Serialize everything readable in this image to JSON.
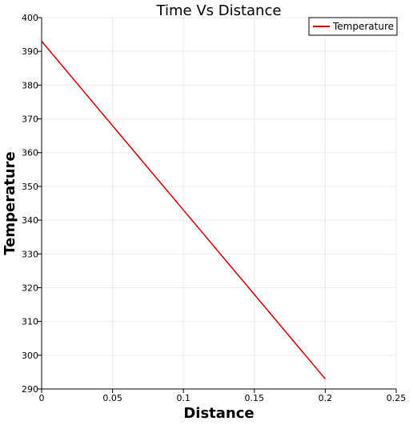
{
  "chart_data": {
    "type": "line",
    "title": "Time Vs Distance",
    "xlabel": "Distance",
    "ylabel": "Temperature",
    "xlim": [
      0,
      0.25
    ],
    "ylim": [
      290,
      400
    ],
    "xticks": [
      0,
      0.05,
      0.1,
      0.15,
      0.2,
      0.25
    ],
    "xtick_labels": [
      "0",
      "0.05",
      "0.1",
      "0.15",
      "0.2",
      "0.25"
    ],
    "yticks": [
      290,
      300,
      310,
      320,
      330,
      340,
      350,
      360,
      370,
      380,
      390,
      400
    ],
    "ytick_labels": [
      "290",
      "300",
      "310",
      "320",
      "330",
      "340",
      "350",
      "360",
      "370",
      "380",
      "390",
      "400"
    ],
    "grid": true,
    "legend": {
      "placement": "top-right"
    },
    "series": [
      {
        "name": "Temperature",
        "color": "#cc0000",
        "x": [
          0,
          0.2
        ],
        "y": [
          393,
          293
        ]
      }
    ]
  }
}
